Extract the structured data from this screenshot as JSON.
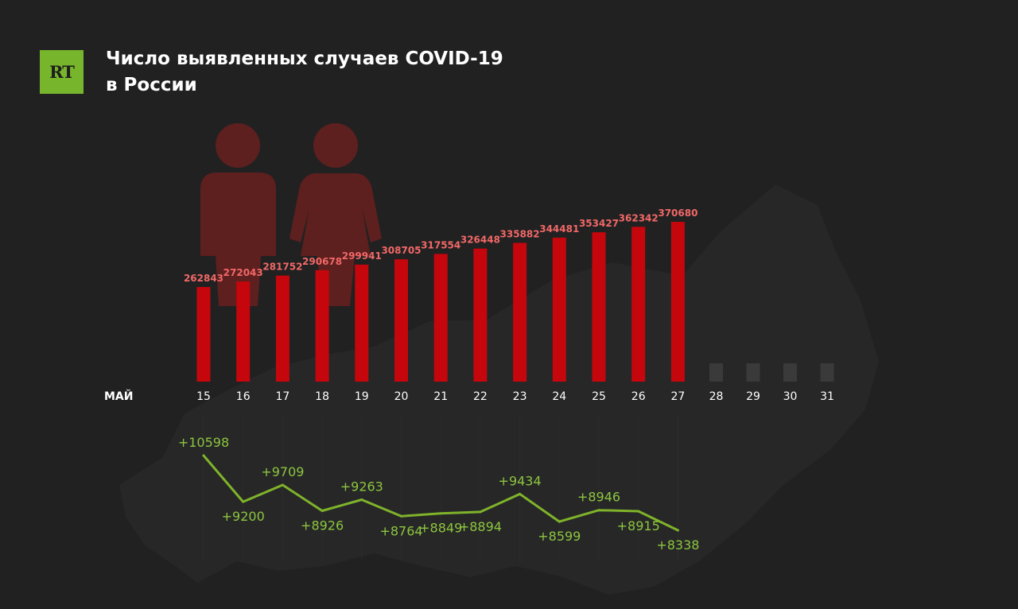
{
  "header": {
    "logo_text": "RT",
    "title_line1": "Число выявленных случаев COVID-19",
    "title_line2": "в России"
  },
  "colors": {
    "background": "#212121",
    "bar": "#c5060c",
    "bar_label": "#f26868",
    "placeholder": "#3a3a3a",
    "line": "#7fb32a",
    "line_label": "#8cc63f",
    "logo": "#77b52c"
  },
  "icons": [
    "man-icon",
    "woman-icon",
    "russia-map"
  ],
  "chart_data": [
    {
      "type": "bar",
      "title": "",
      "month_label": "МАЙ",
      "categories": [
        "15",
        "16",
        "17",
        "18",
        "19",
        "20",
        "21",
        "22",
        "23",
        "24",
        "25",
        "26",
        "27",
        "28",
        "29",
        "30",
        "31"
      ],
      "values": [
        262843,
        272043,
        281752,
        290678,
        299941,
        308705,
        317554,
        326448,
        335882,
        344481,
        353427,
        362342,
        370680,
        null,
        null,
        null,
        null
      ],
      "labels": [
        "262843",
        "272043",
        "281752",
        "290678",
        "299941",
        "308705",
        "317554",
        "326448",
        "335882",
        "344481",
        "353427",
        "362342",
        "370680"
      ]
    },
    {
      "type": "line",
      "categories": [
        "15",
        "16",
        "17",
        "18",
        "19",
        "20",
        "21",
        "22",
        "23",
        "24",
        "25",
        "26",
        "27"
      ],
      "values": [
        10598,
        9200,
        9709,
        8926,
        9263,
        8764,
        8849,
        8894,
        9434,
        8599,
        8946,
        8915,
        8338
      ],
      "labels": [
        "+10598",
        "+9200",
        "+9709",
        "+8926",
        "+9263",
        "+8764",
        "+8849",
        "+8894",
        "+9434",
        "+8599",
        "+8946",
        "+8915",
        "+8338"
      ]
    }
  ]
}
